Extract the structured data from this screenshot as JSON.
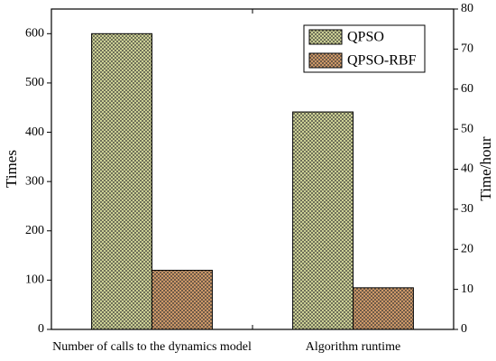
{
  "chart_data": {
    "type": "bar",
    "categories": [
      "Number of calls to the dynamics model",
      "Algorithm runtime"
    ],
    "category_axes": [
      "y",
      "y2"
    ],
    "series": [
      {
        "name": "QPSO",
        "color": "#d8dc9c",
        "values": [
          600,
          54.3
        ]
      },
      {
        "name": "QPSO-RBF",
        "color": "#d9a06c",
        "values": [
          120,
          10.4
        ]
      }
    ],
    "ylabel": "Times",
    "y2label": "Time/hour",
    "ylim": [
      0,
      650
    ],
    "yticks": [
      0,
      100,
      200,
      300,
      400,
      500,
      600
    ],
    "y2lim": [
      0,
      80
    ],
    "y2ticks": [
      0,
      10,
      20,
      30,
      40,
      50,
      60,
      70,
      80
    ],
    "legend": "upper right",
    "hatch": true
  }
}
